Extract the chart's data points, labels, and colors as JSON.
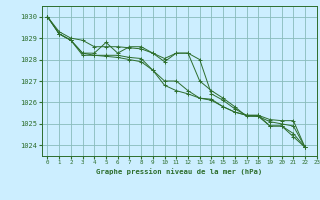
{
  "background_color": "#cceeff",
  "grid_color": "#88bbbb",
  "line_color": "#2d6e2d",
  "title": "Graphe pression niveau de la mer (hPa)",
  "xlim": [
    -0.5,
    23
  ],
  "ylim": [
    1023.5,
    1030.5
  ],
  "yticks": [
    1024,
    1025,
    1026,
    1027,
    1028,
    1029,
    1030
  ],
  "xticks": [
    0,
    1,
    2,
    3,
    4,
    5,
    6,
    7,
    8,
    9,
    10,
    11,
    12,
    13,
    14,
    15,
    16,
    17,
    18,
    19,
    20,
    21,
    22,
    23
  ],
  "series": [
    [
      1030.0,
      1029.2,
      1028.9,
      1028.3,
      1028.3,
      1028.8,
      1028.3,
      1028.6,
      1028.6,
      1028.3,
      1027.9,
      1028.3,
      1028.3,
      1028.0,
      1026.4,
      1026.1,
      1025.7,
      1025.4,
      1025.4,
      1024.9,
      1024.9,
      1024.55,
      1023.9
    ],
    [
      1030.0,
      1029.2,
      1028.9,
      1028.3,
      1028.2,
      1028.2,
      1028.2,
      1028.1,
      1028.05,
      1027.5,
      1027.0,
      1027.0,
      1026.55,
      1026.2,
      1026.15,
      1025.8,
      1025.55,
      1025.4,
      1025.4,
      1025.2,
      1025.15,
      1025.15,
      1023.9
    ],
    [
      1030.0,
      1029.2,
      1028.9,
      1028.2,
      1028.2,
      1028.15,
      1028.1,
      1028.0,
      1027.9,
      1027.5,
      1026.8,
      1026.55,
      1026.4,
      1026.2,
      1026.1,
      1025.8,
      1025.55,
      1025.4,
      1025.35,
      1025.1,
      1025.0,
      1024.9,
      1023.9
    ],
    [
      1030.0,
      1029.3,
      1029.0,
      1028.9,
      1028.6,
      1028.6,
      1028.6,
      1028.55,
      1028.5,
      1028.3,
      1028.05,
      1028.3,
      1028.3,
      1027.0,
      1026.55,
      1026.2,
      1025.8,
      1025.35,
      1025.35,
      1024.9,
      1024.9,
      1024.4,
      1023.9
    ]
  ],
  "figsize": [
    3.2,
    2.0
  ],
  "dpi": 100
}
